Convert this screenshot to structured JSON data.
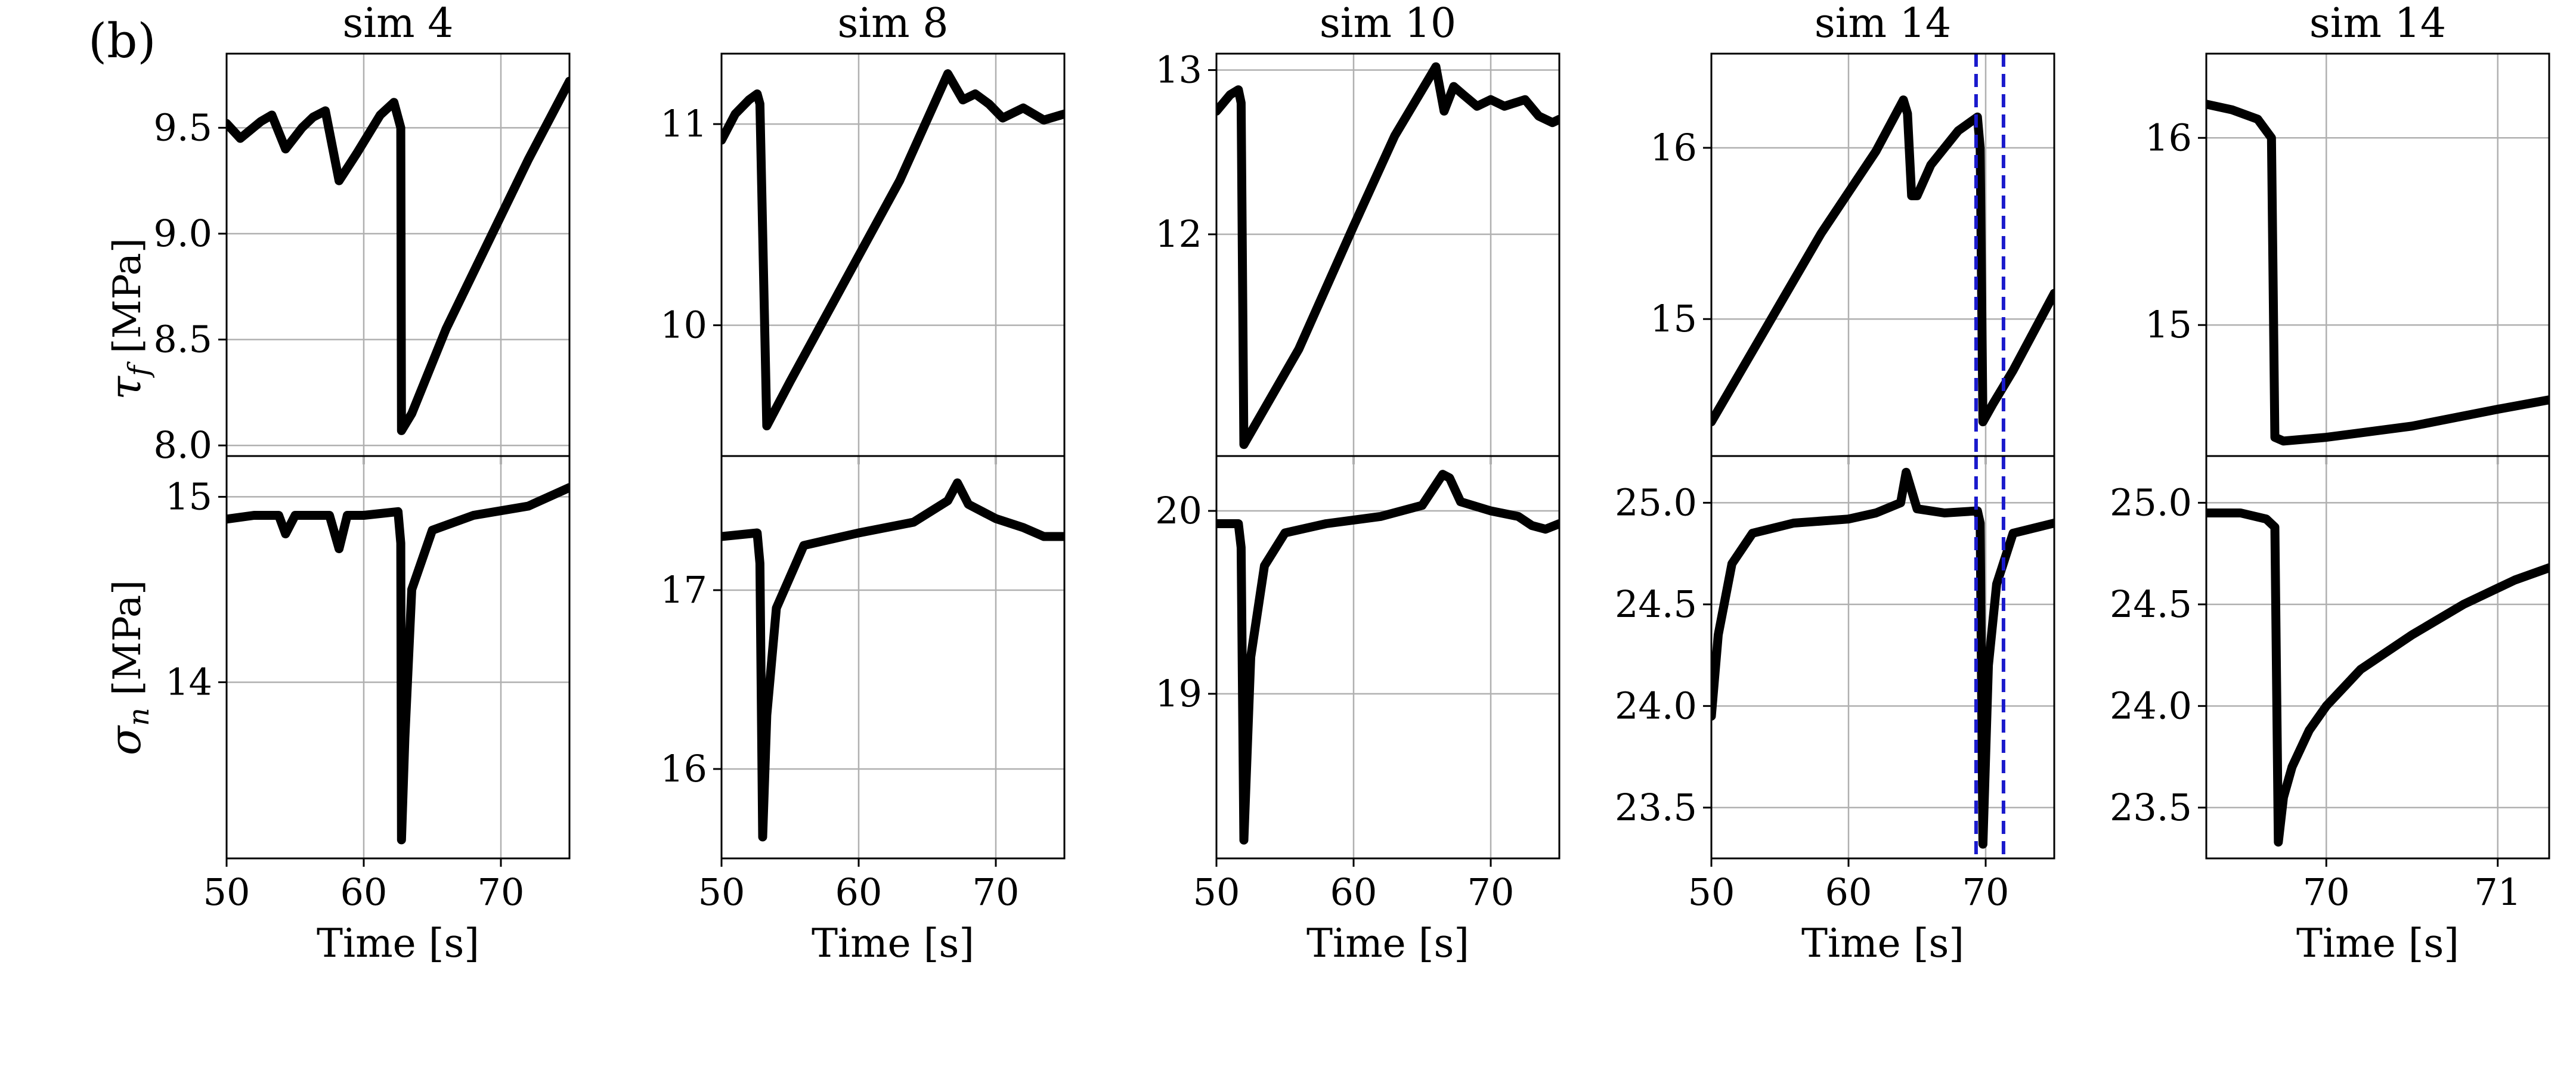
{
  "figure": {
    "panel_label": "(b)",
    "ylabels": {
      "top": {
        "symbol": "τ",
        "sub": "f",
        "unit": " [MPa]"
      },
      "bottom": {
        "symbol": "σ",
        "sub": "n",
        "unit": " [MPa]"
      }
    },
    "xlabel": "Time [s]"
  },
  "chart_data": [
    {
      "type": "line",
      "title": "sim 4",
      "xlabel": "Time [s]",
      "xlim": [
        50,
        75
      ],
      "xticks": [
        50,
        60,
        70
      ],
      "top": {
        "ylabel": "τf [MPa]",
        "ylim": [
          7.95,
          9.85
        ],
        "yticks": [
          8.0,
          8.5,
          9.0,
          9.5
        ],
        "x": [
          50,
          51,
          52.5,
          53.3,
          54.3,
          55.5,
          56.3,
          57.2,
          58.2,
          59.5,
          61.2,
          62.2,
          62.7,
          62.75,
          63.5,
          66,
          69,
          72,
          75
        ],
        "y": [
          9.52,
          9.45,
          9.53,
          9.56,
          9.4,
          9.5,
          9.55,
          9.58,
          9.25,
          9.38,
          9.56,
          9.62,
          9.5,
          8.07,
          8.15,
          8.55,
          8.95,
          9.35,
          9.72
        ]
      },
      "bottom": {
        "ylabel": "σn [MPa]",
        "ylim": [
          13.05,
          15.22
        ],
        "yticks": [
          14,
          15
        ],
        "x": [
          50,
          52,
          53.8,
          54.3,
          55,
          57.5,
          58.2,
          58.8,
          60,
          62.5,
          62.7,
          62.75,
          63,
          63.5,
          65,
          68,
          72,
          75
        ],
        "y": [
          14.88,
          14.9,
          14.9,
          14.8,
          14.9,
          14.9,
          14.72,
          14.9,
          14.9,
          14.92,
          14.75,
          13.15,
          13.7,
          14.5,
          14.82,
          14.9,
          14.95,
          15.05
        ]
      }
    },
    {
      "type": "line",
      "title": "sim 8",
      "xlabel": "Time [s]",
      "xlim": [
        50,
        75
      ],
      "xticks": [
        50,
        60,
        70
      ],
      "top": {
        "ylabel": "τf [MPa]",
        "ylim": [
          9.35,
          11.35
        ],
        "yticks": [
          10,
          11
        ],
        "x": [
          50,
          51,
          52,
          52.6,
          52.8,
          53.3,
          55,
          59,
          63,
          66.5,
          67.6,
          68.5,
          69.5,
          70.5,
          72,
          73.5,
          75
        ],
        "y": [
          10.92,
          11.05,
          11.12,
          11.15,
          11.1,
          9.5,
          9.72,
          10.22,
          10.72,
          11.25,
          11.12,
          11.15,
          11.1,
          11.03,
          11.08,
          11.02,
          11.05
        ]
      },
      "bottom": {
        "ylabel": "σn [MPa]",
        "ylim": [
          15.5,
          17.75
        ],
        "yticks": [
          16,
          17
        ],
        "x": [
          50,
          52.6,
          52.8,
          53,
          53.3,
          54,
          56,
          60,
          64,
          66.5,
          67.2,
          68,
          70,
          72,
          73.5,
          75
        ],
        "y": [
          17.3,
          17.32,
          17.15,
          15.62,
          16.3,
          16.9,
          17.25,
          17.32,
          17.38,
          17.5,
          17.6,
          17.48,
          17.4,
          17.35,
          17.3,
          17.3
        ]
      }
    },
    {
      "type": "line",
      "title": "sim 10",
      "xlabel": "Time [s]",
      "xlim": [
        50,
        75
      ],
      "xticks": [
        50,
        60,
        70
      ],
      "top": {
        "ylabel": "τf [MPa]",
        "ylim": [
          10.65,
          13.1
        ],
        "yticks": [
          12,
          13
        ],
        "x": [
          50,
          51,
          51.6,
          51.8,
          52,
          56,
          60,
          63,
          66,
          66.6,
          67.3,
          68,
          69,
          70,
          71,
          72.5,
          73.5,
          74.5,
          75
        ],
        "y": [
          12.75,
          12.85,
          12.88,
          12.8,
          10.72,
          11.3,
          12.05,
          12.6,
          13.02,
          12.75,
          12.9,
          12.85,
          12.78,
          12.82,
          12.78,
          12.82,
          12.72,
          12.68,
          12.7
        ]
      },
      "bottom": {
        "ylabel": "σn [MPa]",
        "ylim": [
          18.1,
          20.3
        ],
        "yticks": [
          19,
          20
        ],
        "x": [
          50,
          51.6,
          51.8,
          52,
          52.5,
          53.5,
          55,
          58,
          62,
          65,
          66.5,
          67,
          67.8,
          70,
          72,
          73,
          74,
          75
        ],
        "y": [
          19.93,
          19.93,
          19.8,
          18.2,
          19.2,
          19.7,
          19.88,
          19.93,
          19.97,
          20.03,
          20.2,
          20.18,
          20.05,
          20.0,
          19.97,
          19.92,
          19.9,
          19.93
        ]
      }
    },
    {
      "type": "line",
      "title": "sim 14",
      "xlabel": "Time [s]",
      "xlim": [
        50,
        75
      ],
      "xticks": [
        50,
        60,
        70
      ],
      "vlines": [
        69.3,
        71.3
      ],
      "top": {
        "ylabel": "τf [MPa]",
        "ylim": [
          14.2,
          16.55
        ],
        "yticks": [
          15,
          16
        ],
        "x": [
          50,
          54,
          58,
          62,
          64,
          64.3,
          64.6,
          65,
          66,
          68,
          69.4,
          69.6,
          69.8,
          70.5,
          72,
          75
        ],
        "y": [
          14.4,
          14.95,
          15.5,
          15.98,
          16.28,
          16.2,
          15.72,
          15.72,
          15.9,
          16.1,
          16.18,
          16.0,
          14.4,
          14.5,
          14.7,
          15.15
        ]
      },
      "bottom": {
        "ylabel": "σn [MPa]",
        "ylim": [
          23.25,
          25.23
        ],
        "yticks": [
          23.5,
          24.0,
          24.5,
          25.0
        ],
        "x": [
          50,
          50.5,
          51.5,
          53,
          56,
          60,
          62,
          63.8,
          64.2,
          65,
          67,
          69.4,
          69.6,
          69.8,
          70.2,
          70.8,
          72,
          75
        ],
        "y": [
          23.95,
          24.35,
          24.7,
          24.85,
          24.9,
          24.92,
          24.95,
          25.0,
          25.15,
          24.97,
          24.95,
          24.96,
          24.9,
          23.32,
          24.2,
          24.6,
          24.85,
          24.9
        ]
      }
    },
    {
      "type": "line",
      "title": "sim 14",
      "xlabel": "Time [s]",
      "xlim": [
        69.3,
        71.3
      ],
      "xticks": [
        70,
        71
      ],
      "top": {
        "ylabel": "τf [MPa]",
        "ylim": [
          14.3,
          16.45
        ],
        "yticks": [
          15,
          16
        ],
        "x": [
          69.3,
          69.45,
          69.6,
          69.68,
          69.7,
          69.75,
          70.0,
          70.5,
          71.0,
          71.3
        ],
        "y": [
          16.18,
          16.15,
          16.1,
          16.0,
          14.4,
          14.38,
          14.4,
          14.46,
          14.55,
          14.6
        ]
      },
      "bottom": {
        "ylabel": "σn [MPa]",
        "ylim": [
          23.25,
          25.23
        ],
        "yticks": [
          23.5,
          24.0,
          24.5,
          25.0
        ],
        "x": [
          69.3,
          69.5,
          69.65,
          69.7,
          69.72,
          69.75,
          69.8,
          69.9,
          70.0,
          70.2,
          70.5,
          70.8,
          71.1,
          71.3
        ],
        "y": [
          24.95,
          24.95,
          24.92,
          24.88,
          23.33,
          23.55,
          23.7,
          23.88,
          24.0,
          24.18,
          24.35,
          24.5,
          24.62,
          24.68
        ]
      }
    }
  ]
}
